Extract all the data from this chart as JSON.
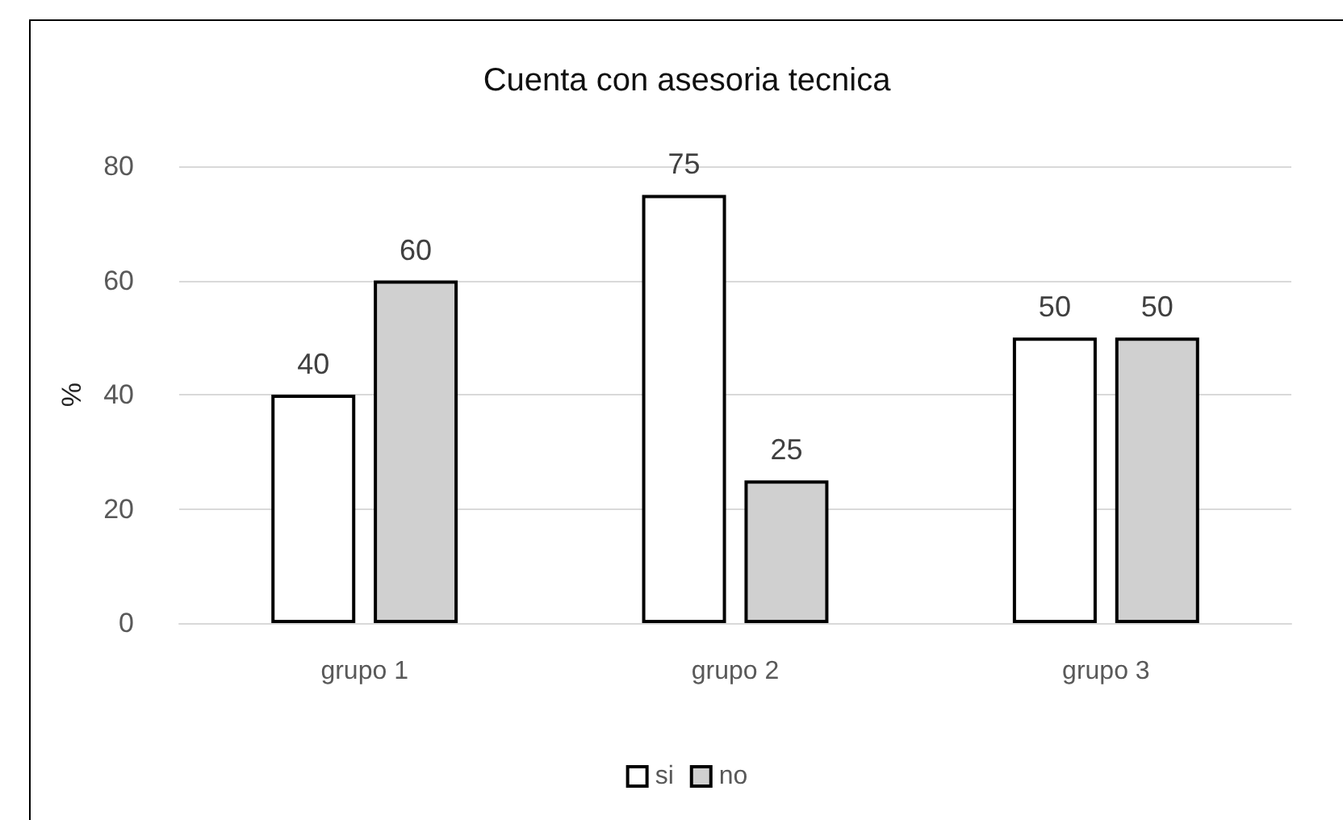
{
  "chart_data": {
    "type": "bar",
    "title": "Cuenta con asesoria tecnica",
    "ylabel": "%",
    "categories": [
      "grupo 1",
      "grupo 2",
      "grupo 3"
    ],
    "series": [
      {
        "name": "si",
        "color": "#ffffff",
        "values": [
          40,
          75,
          50
        ]
      },
      {
        "name": "no",
        "color": "#d0d0d0",
        "values": [
          60,
          25,
          50
        ]
      }
    ],
    "ylim": [
      0,
      80
    ],
    "yticks": [
      0,
      20,
      40,
      60,
      80
    ],
    "grid": "y",
    "legend": "bottom",
    "data_labels": true
  }
}
